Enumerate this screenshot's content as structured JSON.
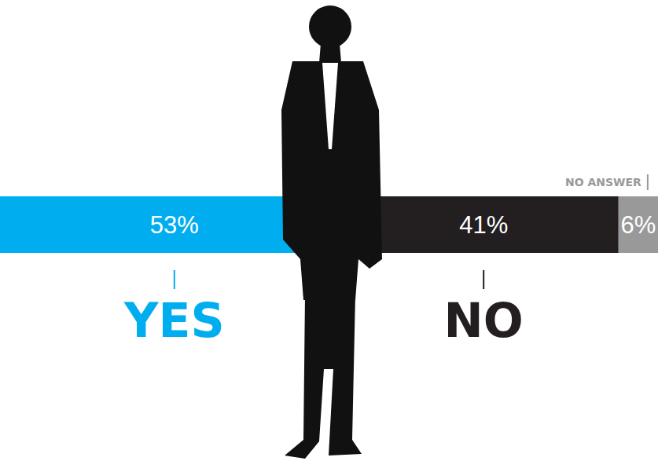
{
  "chart_data": {
    "type": "bar",
    "orientation": "horizontal",
    "stacked": true,
    "data_labels": true,
    "tick_labels": false,
    "grid": false,
    "categories": [
      null
    ],
    "xlim": [
      0,
      100
    ],
    "series": [
      {
        "name": "YES",
        "color": "#00aeef",
        "values": [
          53
        ],
        "value_labels": [
          "53%"
        ]
      },
      {
        "name": "NO",
        "color": "#231f20",
        "values": [
          41
        ],
        "value_labels": [
          "41%"
        ]
      },
      {
        "name": "NO ANSWER",
        "color": "#999999",
        "values": [
          6
        ],
        "value_labels": [
          "6%"
        ]
      }
    ]
  }
}
